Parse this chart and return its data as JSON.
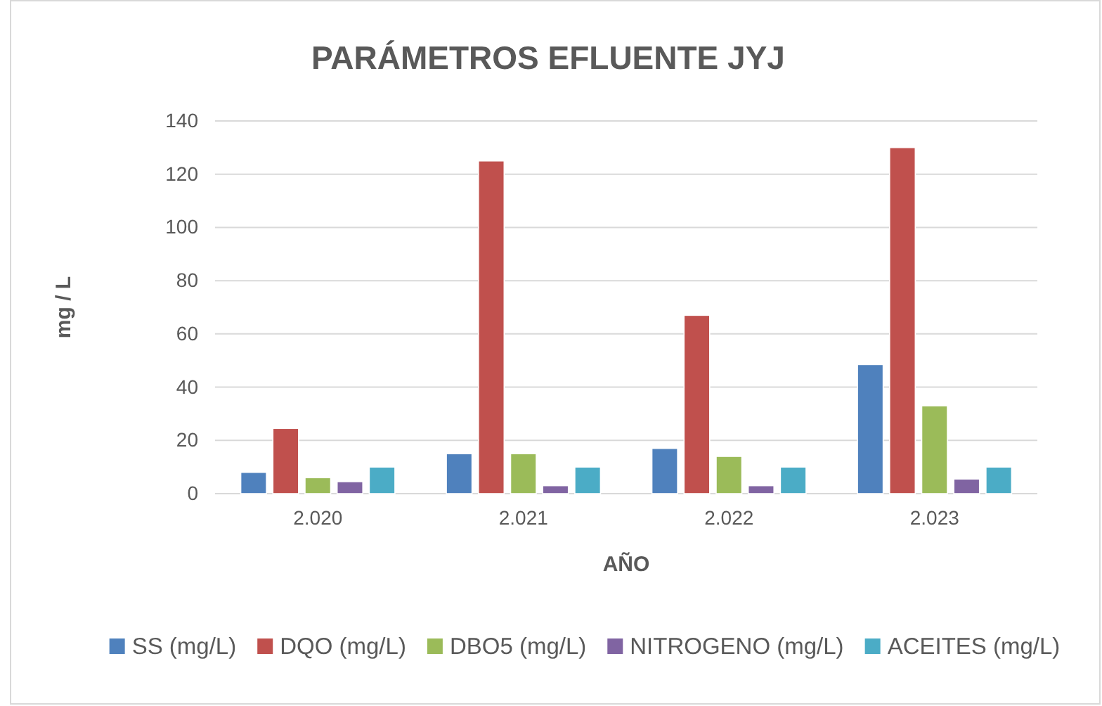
{
  "chart_data": {
    "type": "bar",
    "title": "PARÁMETROS EFLUENTE JYJ",
    "xlabel": "AÑO",
    "ylabel": "mg / L",
    "categories": [
      "2.020",
      "2.021",
      "2.022",
      "2.023"
    ],
    "series": [
      {
        "name": "SS (mg/L)",
        "color": "#4f81bd",
        "values": [
          8,
          15,
          17,
          48.5
        ]
      },
      {
        "name": "DQO (mg/L)",
        "color": "#c0504d",
        "values": [
          24.5,
          125,
          67,
          130
        ]
      },
      {
        "name": "DBO5 (mg/L)",
        "color": "#9bbb59",
        "values": [
          6,
          15,
          14,
          33
        ]
      },
      {
        "name": "NITROGENO (mg/L)",
        "color": "#8064a2",
        "values": [
          4.5,
          3,
          3,
          5.5
        ]
      },
      {
        "name": "ACEITES (mg/L)",
        "color": "#4bacc6",
        "values": [
          10,
          10,
          10,
          10
        ]
      }
    ],
    "ylim": [
      0,
      140
    ],
    "yticks": [
      0,
      20,
      40,
      60,
      80,
      100,
      120,
      140
    ],
    "grid": "y",
    "legend": "bottom"
  }
}
